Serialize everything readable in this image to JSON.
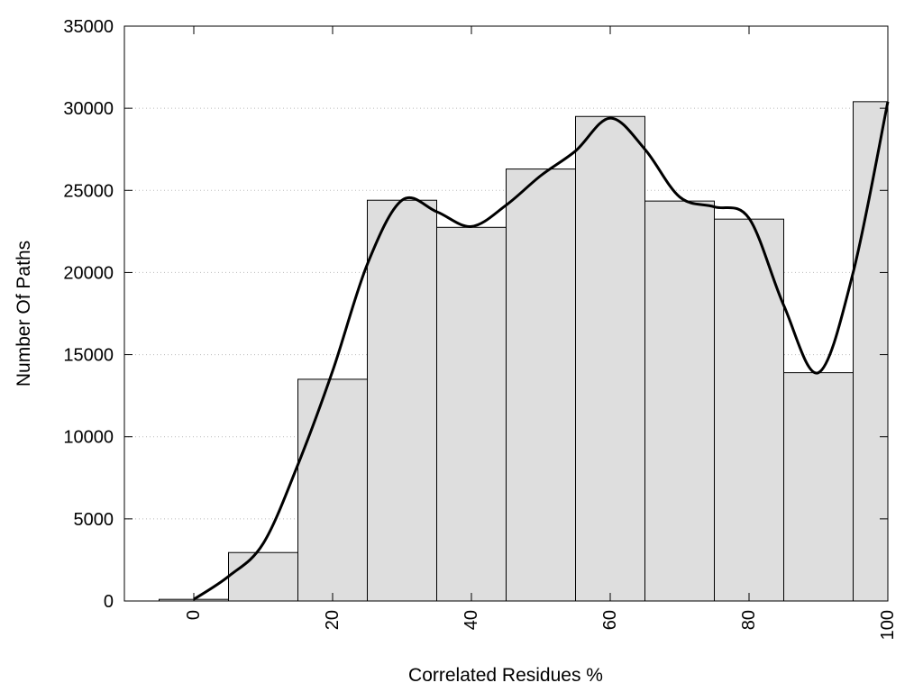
{
  "chart_data": {
    "type": "bar",
    "xlabel": "Correlated Residues %",
    "ylabel": "Number Of Paths",
    "xlim": [
      -10,
      100
    ],
    "ylim": [
      0,
      35000
    ],
    "xticks": [
      0,
      20,
      40,
      60,
      80,
      100
    ],
    "yticks": [
      0,
      5000,
      10000,
      15000,
      20000,
      25000,
      30000,
      35000
    ],
    "bins": [
      {
        "x0": -5,
        "x1": 5,
        "value": 100
      },
      {
        "x0": 5,
        "x1": 15,
        "value": 2950
      },
      {
        "x0": 15,
        "x1": 25,
        "value": 13500
      },
      {
        "x0": 25,
        "x1": 35,
        "value": 24400
      },
      {
        "x0": 35,
        "x1": 45,
        "value": 22750
      },
      {
        "x0": 45,
        "x1": 55,
        "value": 26300
      },
      {
        "x0": 55,
        "x1": 65,
        "value": 29500
      },
      {
        "x0": 65,
        "x1": 75,
        "value": 24350
      },
      {
        "x0": 75,
        "x1": 85,
        "value": 23250
      },
      {
        "x0": 85,
        "x1": 95,
        "value": 13900
      },
      {
        "x0": 95,
        "x1": 100,
        "value": 30400
      }
    ],
    "curve": {
      "x": [
        0,
        5,
        10,
        15,
        20,
        25,
        30,
        35,
        40,
        45,
        50,
        55,
        60,
        65,
        70,
        75,
        80,
        85,
        90,
        95,
        100
      ],
      "y": [
        100,
        1500,
        3500,
        8300,
        14000,
        20500,
        24400,
        23700,
        22800,
        24100,
        25900,
        27400,
        29400,
        27500,
        24600,
        24000,
        23300,
        18000,
        13900,
        20000,
        30400
      ]
    },
    "grid": true,
    "colors": {
      "bar_fill": "#dedede",
      "bar_stroke": "#000000",
      "curve": "#000000",
      "grid": "#bbbbbb"
    }
  }
}
